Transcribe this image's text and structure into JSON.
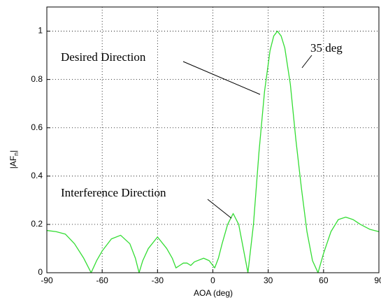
{
  "chart_data": {
    "type": "line",
    "xlabel": "AOA (deg)",
    "ylabel": {
      "main": "|AF",
      "sub": "n",
      "end": "|"
    },
    "annotations": [
      "Desired Direction",
      "35 deg",
      "Interference Direction"
    ],
    "xlim": [
      -90,
      90
    ],
    "xticks": [
      -90,
      -60,
      -30,
      0,
      30,
      60,
      90
    ],
    "ylim": [
      0,
      1.1
    ],
    "yticks": [
      0,
      0.2,
      0.4,
      0.6,
      0.8,
      1
    ],
    "grid": true,
    "series": [
      {
        "color": "#33dd33",
        "x": [
          -90,
          -85,
          -80,
          -75,
          -70,
          -66,
          -63,
          -60,
          -55,
          -50,
          -45,
          -42,
          -40,
          -38,
          -35,
          -30,
          -25,
          -22,
          -20,
          -18,
          -16,
          -14,
          -12,
          -10,
          -5,
          -2,
          1,
          3,
          5,
          8,
          11,
          14,
          17,
          19,
          22,
          25,
          28,
          31,
          33,
          35,
          37,
          39,
          42,
          45,
          48,
          51,
          54,
          57,
          60,
          64,
          68,
          72,
          76,
          80,
          85,
          90
        ],
        "values": [
          0.175,
          0.17,
          0.16,
          0.12,
          0.06,
          0,
          0.05,
          0.09,
          0.14,
          0.155,
          0.12,
          0.06,
          0,
          0.05,
          0.1,
          0.148,
          0.1,
          0.06,
          0.02,
          0.03,
          0.04,
          0.04,
          0.03,
          0.045,
          0.06,
          0.05,
          0.02,
          0.06,
          0.12,
          0.2,
          0.245,
          0.2,
          0.08,
          0,
          0.2,
          0.5,
          0.75,
          0.92,
          0.98,
          1.0,
          0.98,
          0.93,
          0.78,
          0.55,
          0.35,
          0.17,
          0.05,
          0,
          0.08,
          0.17,
          0.22,
          0.23,
          0.22,
          0.2,
          0.18,
          0.17
        ]
      }
    ]
  }
}
